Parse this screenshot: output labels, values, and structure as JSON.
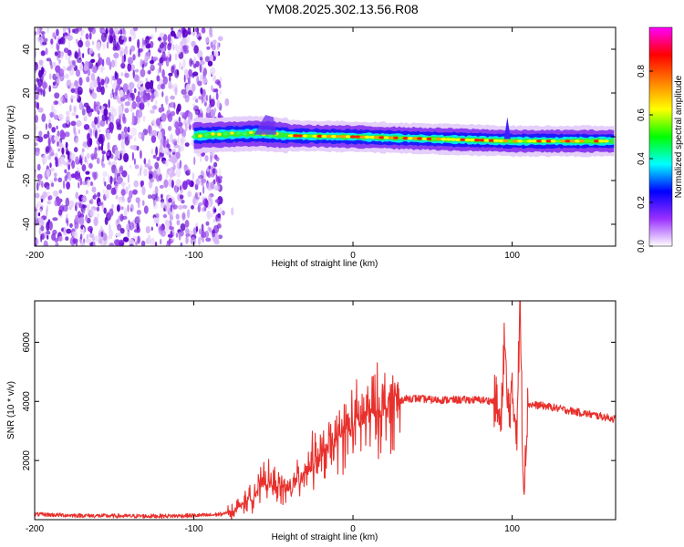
{
  "title": "YM08.2025.302.13.56.R08",
  "chart_data": [
    {
      "type": "heatmap",
      "title": "",
      "xlabel": "Height of straight line (km)",
      "ylabel": "Frequency (Hz)",
      "xlim": [
        -200,
        165
      ],
      "ylim": [
        -50,
        50
      ],
      "xticks": [
        -200,
        -100,
        0,
        100
      ],
      "yticks": [
        -40,
        -20,
        0,
        20,
        40
      ],
      "colorbar": {
        "label": "Normalized spectral amplitude",
        "range": [
          0,
          1
        ],
        "ticks": [
          "0.0",
          "0.2",
          "0.4",
          "0.6",
          "0.8"
        ],
        "colormap": [
          "#ffffff",
          "#9b30ff",
          "#0000ff",
          "#00ffff",
          "#00ff00",
          "#ffff00",
          "#ff8000",
          "#ff0000",
          "#ff00ff"
        ]
      },
      "noise_region_x": [
        -200,
        -83
      ],
      "signal_band": {
        "x_start": -100,
        "x_end": 165,
        "center_frequency_hz": [
          {
            "x": -100,
            "f": 0.5
          },
          {
            "x": -60,
            "f": 1.5
          },
          {
            "x": -40,
            "f": 0.5
          },
          {
            "x": 0,
            "f": 0
          },
          {
            "x": 50,
            "f": -1
          },
          {
            "x": 100,
            "f": -2
          },
          {
            "x": 165,
            "f": -2
          }
        ]
      }
    },
    {
      "type": "line",
      "title": "",
      "xlabel": "Height of straight line (km)",
      "ylabel": "SNR (10 * v/v)",
      "xlim": [
        -200,
        165
      ],
      "ylim": [
        0,
        7400
      ],
      "xticks": [
        -200,
        -100,
        0,
        100
      ],
      "yticks": [
        2000,
        4000,
        6000
      ],
      "series": [
        {
          "name": "SNR",
          "color": "#e8302c",
          "x": [
            -200,
            -180,
            -160,
            -140,
            -120,
            -100,
            -90,
            -80,
            -75,
            -70,
            -65,
            -60,
            -55,
            -50,
            -45,
            -40,
            -35,
            -30,
            -25,
            -20,
            -15,
            -10,
            -5,
            0,
            5,
            10,
            15,
            20,
            25,
            30,
            35,
            40,
            50,
            60,
            70,
            80,
            90,
            93,
            95,
            97,
            100,
            103,
            105,
            107,
            110,
            120,
            130,
            140,
            150,
            160,
            165
          ],
          "y": [
            180,
            150,
            130,
            120,
            120,
            140,
            150,
            200,
            300,
            500,
            700,
            1000,
            1300,
            1200,
            1100,
            1000,
            1300,
            1700,
            2000,
            2100,
            2400,
            2700,
            3000,
            3200,
            3400,
            3550,
            3650,
            3800,
            3950,
            4050,
            4100,
            4100,
            4050,
            4050,
            4050,
            4050,
            4000,
            3000,
            6200,
            3800,
            4100,
            3200,
            7300,
            1200,
            3900,
            3850,
            3750,
            3650,
            3550,
            3450,
            3400
          ]
        }
      ]
    }
  ]
}
